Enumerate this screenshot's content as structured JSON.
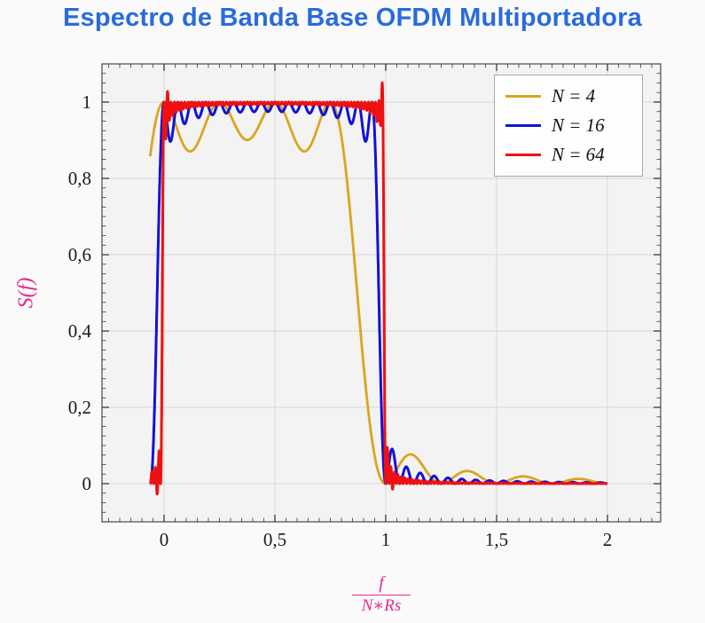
{
  "title": {
    "text": "Espectro de Banda Base OFDM Multiportadora",
    "color": "#2a6bdb"
  },
  "chart_data": {
    "type": "line",
    "title": "Espectro de Banda Base OFDM Multiportadora",
    "xlabel": "f/(N*Rs)",
    "xlabel_numerator": "f",
    "xlabel_denominator": "N∗Rs",
    "ylabel": "S(f)",
    "axis_label_color": "#e7298a",
    "xlim": [
      -0.28,
      2.24
    ],
    "ylim": [
      -0.1,
      1.1
    ],
    "grid": true,
    "legend_position": "top-right-inside",
    "decimal_separator": ",",
    "x_ticks": [
      {
        "value": 0,
        "label": "0"
      },
      {
        "value": 0.5,
        "label": "0,5"
      },
      {
        "value": 1,
        "label": "1"
      },
      {
        "value": 1.5,
        "label": "1,5"
      },
      {
        "value": 2,
        "label": "2"
      }
    ],
    "y_ticks": [
      {
        "value": 0,
        "label": "0"
      },
      {
        "value": 0.2,
        "label": "0,2"
      },
      {
        "value": 0.4,
        "label": "0,4"
      },
      {
        "value": 0.6,
        "label": "0,6"
      },
      {
        "value": 0.8,
        "label": "0,8"
      },
      {
        "value": 1,
        "label": "1"
      }
    ],
    "x_minor_tick_step": 0.05,
    "y_minor_tick_step": 0.025,
    "model_description": "Normalized OFDM baseband power spectrum: S(x) = sum_{k=0}^{N-1} sinc^2(N*x - k), with x = f/(N*Rs); flat ~1 over 0<=x<=1 with in-band ripple that decreases as N grows, sharp roll-off at the band edges and decaying sidelobes for x>1.",
    "series": [
      {
        "name": "N = 4",
        "N": 4,
        "color": "#DAA520",
        "stroke_width": 2.8,
        "x_start": -0.0625,
        "x_end": 2.0,
        "band": [
          0,
          1
        ],
        "peak": 1.0,
        "in_band_ripple_min": 0.87,
        "first_sidelobe": {
          "x": 1.12,
          "value": 0.075
        }
      },
      {
        "name": "N = 16",
        "N": 16,
        "color": "#1212d6",
        "stroke_width": 3,
        "x_start": -0.0625,
        "x_end": 2.0,
        "band": [
          0,
          1
        ],
        "peak": 1.0,
        "in_band_ripple_min": 0.88,
        "first_sidelobe": {
          "x": 1.03,
          "value": 0.09
        }
      },
      {
        "name": "N = 64",
        "N": 64,
        "color": "#ee1111",
        "stroke_width": 3,
        "x_start": -0.0625,
        "x_end": 2.0,
        "band": [
          0,
          1
        ],
        "peak": 1.05,
        "in_band_ripple_min": 0.93,
        "edge_features": [
          {
            "center": 0.982,
            "width": 0.008,
            "amp": 0.055
          },
          {
            "center": 0.016,
            "width": 0.005,
            "amp": 0.028
          },
          {
            "center": -0.03,
            "width": 0.007,
            "amp": -0.028
          },
          {
            "center": 1.03,
            "width": 0.006,
            "amp": -0.015
          }
        ]
      }
    ],
    "colors": {
      "plot_bg": "#f3f3f3",
      "grid": "#d7d7d7",
      "frame": "#4a4a4a",
      "tick": "#3a3a3a",
      "tick_label": "#1b1b1b"
    }
  },
  "legend": {
    "entries": [
      {
        "label": "N = 4"
      },
      {
        "label": "N = 16"
      },
      {
        "label": "N = 64"
      }
    ]
  }
}
